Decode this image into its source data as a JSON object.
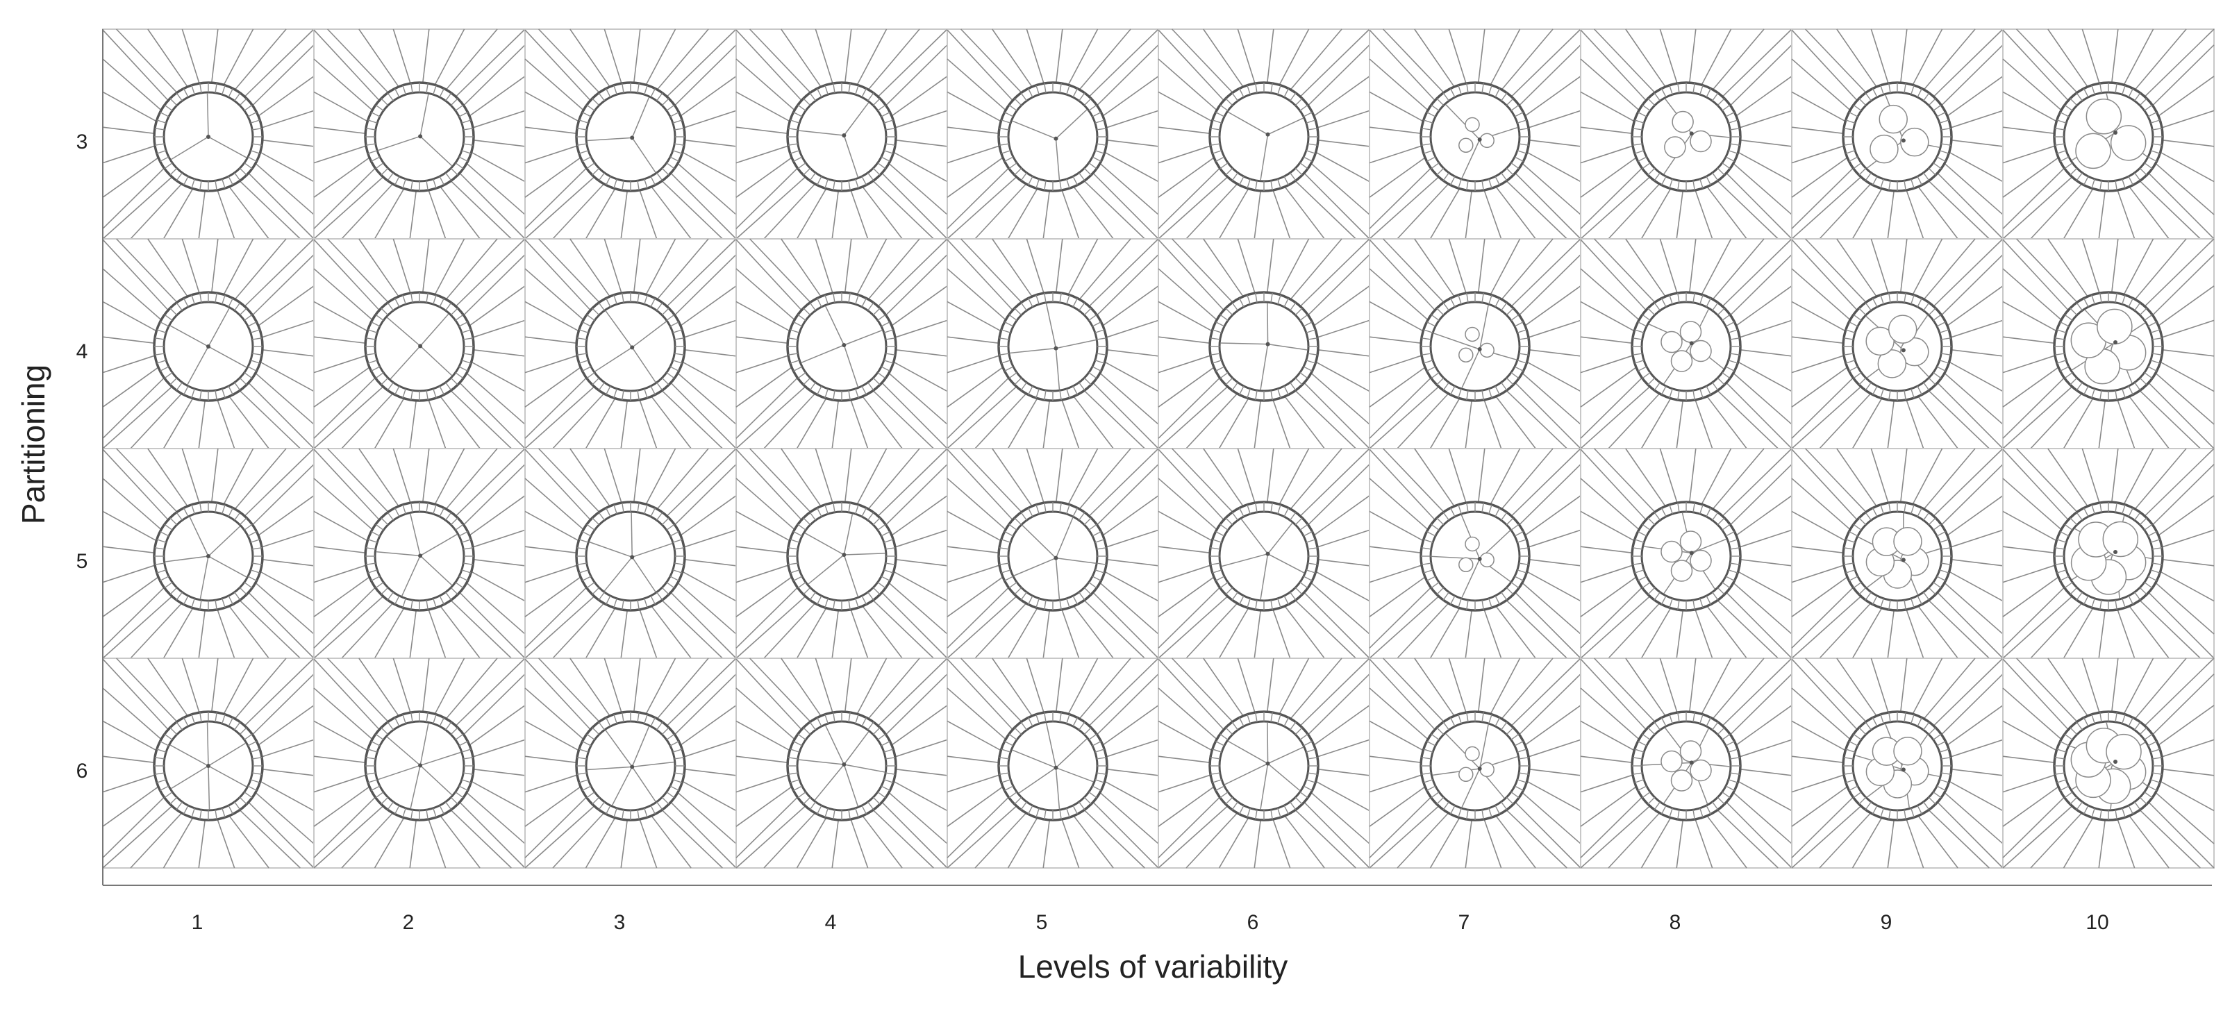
{
  "figure": {
    "y_axis_label": "Partitioning",
    "x_axis_label": "Levels of variability",
    "row_labels": [
      "3",
      "4",
      "5",
      "6"
    ],
    "column_labels": [
      "1",
      "2",
      "3",
      "4",
      "5",
      "6",
      "7",
      "8",
      "9",
      "10"
    ]
  },
  "colors": {
    "background": "#ffffff",
    "line": "#8a8a8a",
    "dark_line": "#555555",
    "panel_border": "#c8c8c8"
  }
}
